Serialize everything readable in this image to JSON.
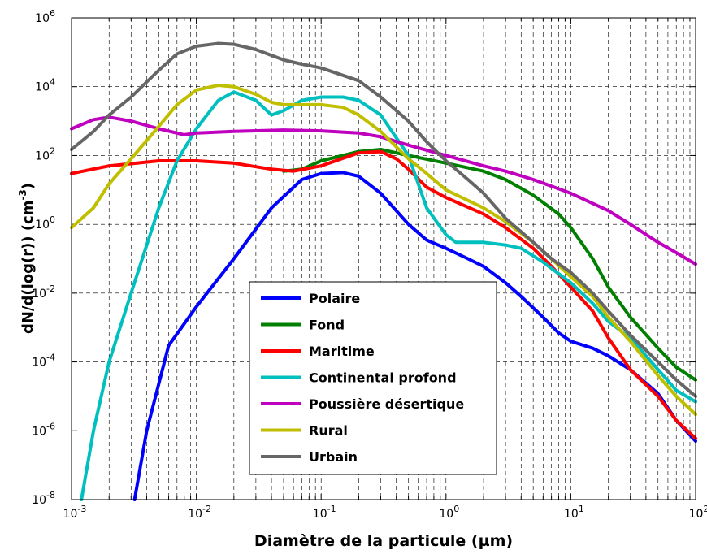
{
  "chart_data": {
    "type": "line",
    "title": "",
    "xlabel": "Diamètre de la particule (µm)",
    "ylabel_main": "dN/d(log(r)) (cm",
    "ylabel_sup": "-3",
    "ylabel_close": ")",
    "xscale": "log",
    "yscale": "log",
    "xlim": [
      0.001,
      100
    ],
    "ylim": [
      1e-08,
      1000000.0
    ],
    "x_ticks": [
      {
        "base": "10",
        "exp": "-3",
        "value": 0.001
      },
      {
        "base": "10",
        "exp": "-2",
        "value": 0.01
      },
      {
        "base": "10",
        "exp": "-1",
        "value": 0.1
      },
      {
        "base": "10",
        "exp": "0",
        "value": 1
      },
      {
        "base": "10",
        "exp": "1",
        "value": 10
      },
      {
        "base": "10",
        "exp": "2",
        "value": 100
      }
    ],
    "y_ticks": [
      {
        "base": "10",
        "exp": "-8",
        "value": 1e-08
      },
      {
        "base": "10",
        "exp": "-6",
        "value": 1e-06
      },
      {
        "base": "10",
        "exp": "-4",
        "value": 0.0001
      },
      {
        "base": "10",
        "exp": "-2",
        "value": 0.01
      },
      {
        "base": "10",
        "exp": "0",
        "value": 1
      },
      {
        "base": "10",
        "exp": "2",
        "value": 100
      },
      {
        "base": "10",
        "exp": "4",
        "value": 10000
      },
      {
        "base": "10",
        "exp": "6",
        "value": 1000000
      }
    ],
    "grid": true,
    "legend_position": "bottom-center",
    "series": [
      {
        "name": "Polaire",
        "color": "#0000ff",
        "points": [
          [
            0.0032,
            1e-08
          ],
          [
            0.004,
            1e-06
          ],
          [
            0.006,
            0.0003
          ],
          [
            0.01,
            0.004
          ],
          [
            0.02,
            0.1
          ],
          [
            0.04,
            3
          ],
          [
            0.07,
            20
          ],
          [
            0.1,
            30
          ],
          [
            0.15,
            32
          ],
          [
            0.2,
            25
          ],
          [
            0.3,
            8
          ],
          [
            0.5,
            1
          ],
          [
            0.7,
            0.35
          ],
          [
            1,
            0.2
          ],
          [
            1.5,
            0.1
          ],
          [
            2,
            0.06
          ],
          [
            3,
            0.02
          ],
          [
            4,
            0.008
          ],
          [
            6,
            0.002
          ],
          [
            8,
            0.0007
          ],
          [
            10,
            0.0004
          ],
          [
            15,
            0.00025
          ],
          [
            20,
            0.00015
          ],
          [
            30,
            6e-05
          ],
          [
            50,
            1.2e-05
          ],
          [
            70,
            2e-06
          ],
          [
            100,
            5e-07
          ]
        ]
      },
      {
        "name": "Fond",
        "color": "#007f00",
        "points": [
          [
            0.05,
            35
          ],
          [
            0.07,
            40
          ],
          [
            0.1,
            70
          ],
          [
            0.2,
            130
          ],
          [
            0.3,
            150
          ],
          [
            0.5,
            100
          ],
          [
            1,
            60
          ],
          [
            2,
            35
          ],
          [
            3,
            20
          ],
          [
            5,
            7
          ],
          [
            8,
            2
          ],
          [
            10,
            0.8
          ],
          [
            15,
            0.1
          ],
          [
            20,
            0.015
          ],
          [
            30,
            0.002
          ],
          [
            50,
            0.00025
          ],
          [
            70,
            7e-05
          ],
          [
            100,
            3e-05
          ]
        ]
      },
      {
        "name": "Maritime",
        "color": "#ff0000",
        "points": [
          [
            0.001,
            30
          ],
          [
            0.002,
            50
          ],
          [
            0.005,
            70
          ],
          [
            0.01,
            70
          ],
          [
            0.02,
            60
          ],
          [
            0.04,
            40
          ],
          [
            0.06,
            35
          ],
          [
            0.1,
            50
          ],
          [
            0.2,
            120
          ],
          [
            0.3,
            130
          ],
          [
            0.4,
            80
          ],
          [
            0.5,
            40
          ],
          [
            0.7,
            12
          ],
          [
            1,
            6
          ],
          [
            2,
            2
          ],
          [
            3,
            0.8
          ],
          [
            5,
            0.2
          ],
          [
            7,
            0.06
          ],
          [
            10,
            0.015
          ],
          [
            15,
            0.003
          ],
          [
            20,
            0.0005
          ],
          [
            30,
            6e-05
          ],
          [
            50,
            1e-05
          ],
          [
            70,
            2e-06
          ],
          [
            100,
            6e-07
          ]
        ]
      },
      {
        "name": "Continental profond",
        "color": "#00bfbf",
        "points": [
          [
            0.0012,
            1e-08
          ],
          [
            0.0015,
            1e-06
          ],
          [
            0.002,
            0.0001
          ],
          [
            0.003,
            0.01
          ],
          [
            0.005,
            3
          ],
          [
            0.007,
            70
          ],
          [
            0.01,
            600
          ],
          [
            0.015,
            4000
          ],
          [
            0.02,
            7000
          ],
          [
            0.03,
            4000
          ],
          [
            0.04,
            1500
          ],
          [
            0.05,
            2000
          ],
          [
            0.07,
            4000
          ],
          [
            0.1,
            5000
          ],
          [
            0.15,
            5000
          ],
          [
            0.2,
            4000
          ],
          [
            0.3,
            1500
          ],
          [
            0.5,
            100
          ],
          [
            0.7,
            3
          ],
          [
            1,
            0.5
          ],
          [
            1.2,
            0.3
          ],
          [
            1.5,
            0.3
          ],
          [
            2,
            0.3
          ],
          [
            3,
            0.25
          ],
          [
            4,
            0.2
          ],
          [
            6,
            0.08
          ],
          [
            10,
            0.02
          ],
          [
            15,
            0.005
          ],
          [
            20,
            0.0015
          ],
          [
            30,
            0.0005
          ],
          [
            50,
            6e-05
          ],
          [
            70,
            1.5e-05
          ],
          [
            100,
            7e-06
          ]
        ]
      },
      {
        "name": "Poussière désertique",
        "color": "#bf00bf",
        "points": [
          [
            0.001,
            600
          ],
          [
            0.0015,
            1100
          ],
          [
            0.002,
            1300
          ],
          [
            0.003,
            1000
          ],
          [
            0.005,
            600
          ],
          [
            0.008,
            400
          ],
          [
            0.01,
            450
          ],
          [
            0.02,
            500
          ],
          [
            0.05,
            550
          ],
          [
            0.1,
            520
          ],
          [
            0.2,
            450
          ],
          [
            0.3,
            350
          ],
          [
            0.5,
            200
          ],
          [
            1,
            100
          ],
          [
            2,
            50
          ],
          [
            3,
            35
          ],
          [
            5,
            20
          ],
          [
            10,
            8
          ],
          [
            20,
            2.5
          ],
          [
            30,
            1
          ],
          [
            50,
            0.3
          ],
          [
            70,
            0.15
          ],
          [
            100,
            0.07
          ]
        ]
      },
      {
        "name": "Rural",
        "color": "#bfbf00",
        "points": [
          [
            0.001,
            0.8
          ],
          [
            0.0015,
            3
          ],
          [
            0.002,
            15
          ],
          [
            0.003,
            80
          ],
          [
            0.005,
            700
          ],
          [
            0.007,
            3000
          ],
          [
            0.01,
            8000
          ],
          [
            0.015,
            11000
          ],
          [
            0.02,
            10000
          ],
          [
            0.03,
            6000
          ],
          [
            0.04,
            3500
          ],
          [
            0.05,
            3000
          ],
          [
            0.07,
            3000
          ],
          [
            0.1,
            3000
          ],
          [
            0.15,
            2500
          ],
          [
            0.2,
            1500
          ],
          [
            0.3,
            500
          ],
          [
            0.5,
            80
          ],
          [
            0.7,
            30
          ],
          [
            1,
            10
          ],
          [
            2,
            3
          ],
          [
            3,
            1.2
          ],
          [
            5,
            0.3
          ],
          [
            7,
            0.1
          ],
          [
            10,
            0.03
          ],
          [
            15,
            0.008
          ],
          [
            20,
            0.002
          ],
          [
            30,
            0.0004
          ],
          [
            50,
            4e-05
          ],
          [
            70,
            1e-05
          ],
          [
            100,
            3e-06
          ]
        ]
      },
      {
        "name": "Urbain",
        "color": "#666666",
        "points": [
          [
            0.001,
            150
          ],
          [
            0.0015,
            500
          ],
          [
            0.002,
            1500
          ],
          [
            0.003,
            5000
          ],
          [
            0.005,
            30000
          ],
          [
            0.007,
            90000
          ],
          [
            0.01,
            150000
          ],
          [
            0.015,
            180000
          ],
          [
            0.02,
            170000
          ],
          [
            0.03,
            120000
          ],
          [
            0.05,
            60000
          ],
          [
            0.07,
            45000
          ],
          [
            0.1,
            35000
          ],
          [
            0.2,
            15000
          ],
          [
            0.3,
            5000
          ],
          [
            0.5,
            1000
          ],
          [
            0.7,
            250
          ],
          [
            1,
            70
          ],
          [
            1.5,
            20
          ],
          [
            2,
            8
          ],
          [
            3,
            1.5
          ],
          [
            5,
            0.3
          ],
          [
            7,
            0.1
          ],
          [
            10,
            0.04
          ],
          [
            15,
            0.01
          ],
          [
            20,
            0.003
          ],
          [
            30,
            0.0006
          ],
          [
            50,
            0.0001
          ],
          [
            70,
            3e-05
          ],
          [
            100,
            1e-05
          ]
        ]
      }
    ]
  }
}
